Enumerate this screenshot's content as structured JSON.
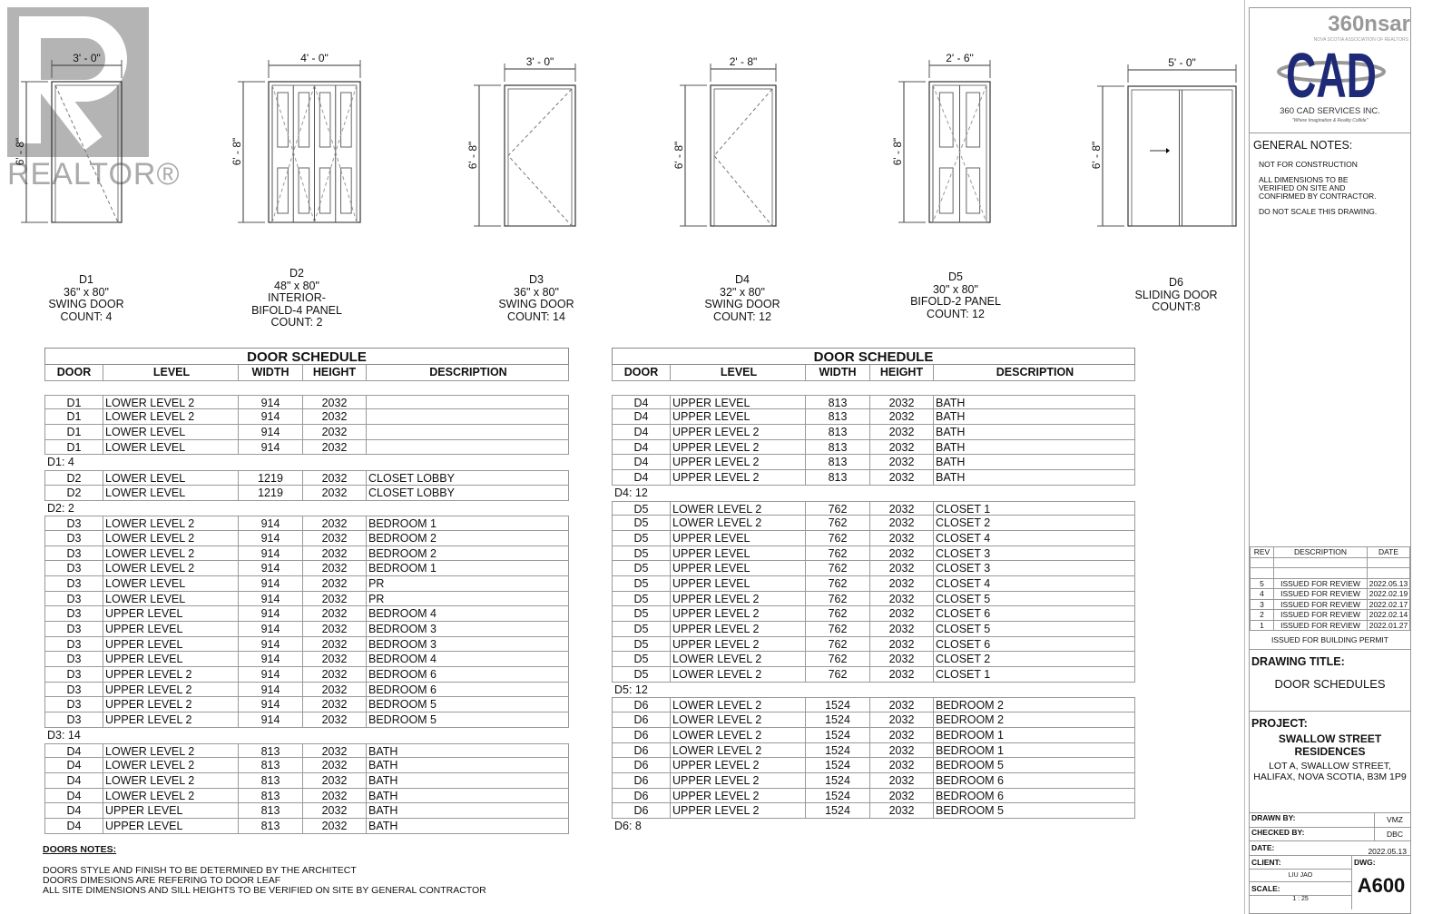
{
  "watermark": {
    "text": "REALTOR®",
    "registered": "®"
  },
  "doors": [
    {
      "id": "D1",
      "size": "36\" x 80\"",
      "type": "SWING DOOR",
      "count": "COUNT: 4",
      "width_dim": "3' - 0\"",
      "height_dim": "6' - 8\""
    },
    {
      "id": "D2",
      "size": "48\" x 80\"",
      "type": "INTERIOR-\nBIFOLD-4 PANEL",
      "count": "COUNT: 2",
      "width_dim": "4' - 0\"",
      "height_dim": "6' - 8\""
    },
    {
      "id": "D3",
      "size": "36\" x 80\"",
      "type": "SWING DOOR",
      "count": "COUNT: 14",
      "width_dim": "3' - 0\"",
      "height_dim": "6' - 8\""
    },
    {
      "id": "D4",
      "size": "32\" x 80\"",
      "type": "SWING DOOR",
      "count": "COUNT: 12",
      "width_dim": "2' - 8\"",
      "height_dim": "6' - 8\""
    },
    {
      "id": "D5",
      "size": "30\" x 80\"",
      "type": "BIFOLD-2 PANEL",
      "count": "COUNT: 12",
      "width_dim": "2' - 6\"",
      "height_dim": "6' - 8\""
    },
    {
      "id": "D6",
      "size": "",
      "type": "SLIDING DOOR",
      "count": "COUNT:8",
      "width_dim": "5' - 0\"",
      "height_dim": "6' - 8\""
    }
  ],
  "schedule_title": "DOOR SCHEDULE",
  "columns": [
    "DOOR",
    "LEVEL",
    "WIDTH",
    "HEIGHT",
    "DESCRIPTION"
  ],
  "schedules": [
    [
      [
        "D1",
        "LOWER LEVEL 2",
        "914",
        "2032",
        ""
      ],
      [
        "D1",
        "LOWER LEVEL 2",
        "914",
        "2032",
        ""
      ],
      [
        "D1",
        "LOWER LEVEL",
        "914",
        "2032",
        ""
      ],
      [
        "D1",
        "LOWER LEVEL",
        "914",
        "2032",
        ""
      ],
      "D1: 4",
      [
        "D2",
        "LOWER LEVEL",
        "1219",
        "2032",
        "CLOSET LOBBY"
      ],
      [
        "D2",
        "LOWER LEVEL",
        "1219",
        "2032",
        "CLOSET LOBBY"
      ],
      "D2: 2",
      [
        "D3",
        "LOWER LEVEL 2",
        "914",
        "2032",
        "BEDROOM 1"
      ],
      [
        "D3",
        "LOWER LEVEL 2",
        "914",
        "2032",
        "BEDROOM 2"
      ],
      [
        "D3",
        "LOWER LEVEL 2",
        "914",
        "2032",
        "BEDROOM 2"
      ],
      [
        "D3",
        "LOWER LEVEL 2",
        "914",
        "2032",
        "BEDROOM 1"
      ],
      [
        "D3",
        "LOWER LEVEL",
        "914",
        "2032",
        "PR"
      ],
      [
        "D3",
        "LOWER LEVEL",
        "914",
        "2032",
        "PR"
      ],
      [
        "D3",
        "UPPER LEVEL",
        "914",
        "2032",
        "BEDROOM 4"
      ],
      [
        "D3",
        "UPPER LEVEL",
        "914",
        "2032",
        "BEDROOM 3"
      ],
      [
        "D3",
        "UPPER LEVEL",
        "914",
        "2032",
        "BEDROOM 3"
      ],
      [
        "D3",
        "UPPER LEVEL",
        "914",
        "2032",
        "BEDROOM 4"
      ],
      [
        "D3",
        "UPPER LEVEL 2",
        "914",
        "2032",
        "BEDROOM 6"
      ],
      [
        "D3",
        "UPPER LEVEL 2",
        "914",
        "2032",
        "BEDROOM 6"
      ],
      [
        "D3",
        "UPPER LEVEL 2",
        "914",
        "2032",
        "BEDROOM 5"
      ],
      [
        "D3",
        "UPPER LEVEL 2",
        "914",
        "2032",
        "BEDROOM 5"
      ],
      "D3: 14",
      [
        "D4",
        "LOWER LEVEL 2",
        "813",
        "2032",
        "BATH"
      ],
      [
        "D4",
        "LOWER LEVEL 2",
        "813",
        "2032",
        "BATH"
      ],
      [
        "D4",
        "LOWER LEVEL 2",
        "813",
        "2032",
        "BATH"
      ],
      [
        "D4",
        "LOWER LEVEL 2",
        "813",
        "2032",
        "BATH"
      ],
      [
        "D4",
        "UPPER LEVEL",
        "813",
        "2032",
        "BATH"
      ],
      [
        "D4",
        "UPPER LEVEL",
        "813",
        "2032",
        "BATH"
      ]
    ],
    [
      [
        "D4",
        "UPPER LEVEL",
        "813",
        "2032",
        "BATH"
      ],
      [
        "D4",
        "UPPER LEVEL",
        "813",
        "2032",
        "BATH"
      ],
      [
        "D4",
        "UPPER LEVEL 2",
        "813",
        "2032",
        "BATH"
      ],
      [
        "D4",
        "UPPER LEVEL 2",
        "813",
        "2032",
        "BATH"
      ],
      [
        "D4",
        "UPPER LEVEL 2",
        "813",
        "2032",
        "BATH"
      ],
      [
        "D4",
        "UPPER LEVEL 2",
        "813",
        "2032",
        "BATH"
      ],
      "D4: 12",
      [
        "D5",
        "LOWER LEVEL 2",
        "762",
        "2032",
        "CLOSET 1"
      ],
      [
        "D5",
        "LOWER LEVEL 2",
        "762",
        "2032",
        "CLOSET 2"
      ],
      [
        "D5",
        "UPPER LEVEL",
        "762",
        "2032",
        "CLOSET 4"
      ],
      [
        "D5",
        "UPPER LEVEL",
        "762",
        "2032",
        "CLOSET 3"
      ],
      [
        "D5",
        "UPPER LEVEL",
        "762",
        "2032",
        "CLOSET 3"
      ],
      [
        "D5",
        "UPPER LEVEL",
        "762",
        "2032",
        "CLOSET 4"
      ],
      [
        "D5",
        "UPPER LEVEL 2",
        "762",
        "2032",
        "CLOSET 5"
      ],
      [
        "D5",
        "UPPER LEVEL 2",
        "762",
        "2032",
        "CLOSET 6"
      ],
      [
        "D5",
        "UPPER LEVEL 2",
        "762",
        "2032",
        "CLOSET 5"
      ],
      [
        "D5",
        "UPPER LEVEL 2",
        "762",
        "2032",
        "CLOSET 6"
      ],
      [
        "D5",
        "LOWER LEVEL 2",
        "762",
        "2032",
        "CLOSET 2"
      ],
      [
        "D5",
        "LOWER LEVEL 2",
        "762",
        "2032",
        "CLOSET 1"
      ],
      "D5: 12",
      [
        "D6",
        "LOWER LEVEL 2",
        "1524",
        "2032",
        "BEDROOM 2"
      ],
      [
        "D6",
        "LOWER LEVEL 2",
        "1524",
        "2032",
        "BEDROOM 2"
      ],
      [
        "D6",
        "LOWER LEVEL 2",
        "1524",
        "2032",
        "BEDROOM 1"
      ],
      [
        "D6",
        "LOWER LEVEL 2",
        "1524",
        "2032",
        "BEDROOM 1"
      ],
      [
        "D6",
        "UPPER LEVEL 2",
        "1524",
        "2032",
        "BEDROOM 5"
      ],
      [
        "D6",
        "UPPER LEVEL 2",
        "1524",
        "2032",
        "BEDROOM 6"
      ],
      [
        "D6",
        "UPPER LEVEL 2",
        "1524",
        "2032",
        "BEDROOM 6"
      ],
      [
        "D6",
        "UPPER LEVEL 2",
        "1524",
        "2032",
        "BEDROOM 5"
      ],
      "D6: 8"
    ]
  ],
  "notes": {
    "title": "DOORS NOTES:",
    "lines": [
      "DOORS STYLE AND FINISH TO BE DETERMINED BY THE ARCHITECT",
      "DOORS DIMESIONS ARE REFERING TO DOOR LEAF",
      "ALL SITE DIMENSIONS AND SILL HEIGHTS TO BE VERIFIED ON SITE BY GENERAL CONTRACTOR"
    ]
  },
  "title_block": {
    "nsar_logo": "360nsar",
    "nsar_tagline": "NOVA SCOTIA ASSOCIATION OF REALTORS",
    "logo": "CAD",
    "company": "360 CAD SERVICES INC.",
    "tagline": "\"Where Imagination & Reality Collide\"",
    "logo_color": "#1e2a78",
    "general_notes_title": "GENERAL NOTES:",
    "general_notes": [
      "NOT FOR CONSTRUCTION",
      "ALL DIMENSIONS TO BE VERIFIED ON SITE AND CONFIRMED BY CONTRACTOR.",
      "DO NOT SCALE THIS DRAWING."
    ],
    "rev_headers": [
      "REV",
      "DESCRIPTION",
      "DATE"
    ],
    "revisions": [
      [
        "5",
        "ISSUED FOR REVIEW",
        "2022.05.13"
      ],
      [
        "4",
        "ISSUED FOR REVIEW",
        "2022.02.19"
      ],
      [
        "3",
        "ISSUED FOR REVIEW",
        "2022.02.17"
      ],
      [
        "2",
        "ISSUED FOR REVIEW",
        "2022.02.14"
      ],
      [
        "1",
        "ISSUED FOR REVIEW",
        "2022.01.27"
      ]
    ],
    "status": "ISSUED FOR BUILDING PERMIT",
    "drawing_title_label": "DRAWING TITLE:",
    "drawing_title": "DOOR SCHEDULES",
    "project_label": "PROJECT:",
    "project_name": "SWALLOW STREET RESIDENCES",
    "project_address": "LOT A, SWALLOW STREET, HALIFAX, NOVA SCOTIA, B3M 1P9",
    "drawn_by_label": "DRAWN BY:",
    "drawn_by": "VMZ",
    "checked_by_label": "CHECKED BY:",
    "checked_by": "DBC",
    "date_label": "DATE:",
    "date": "2022.05.13",
    "client_label": "CLIENT:",
    "client": "LIU JAO",
    "dwg_label": "DWG:",
    "dwg": "A600",
    "scale_label": "SCALE:",
    "scale": "1 : 25"
  }
}
